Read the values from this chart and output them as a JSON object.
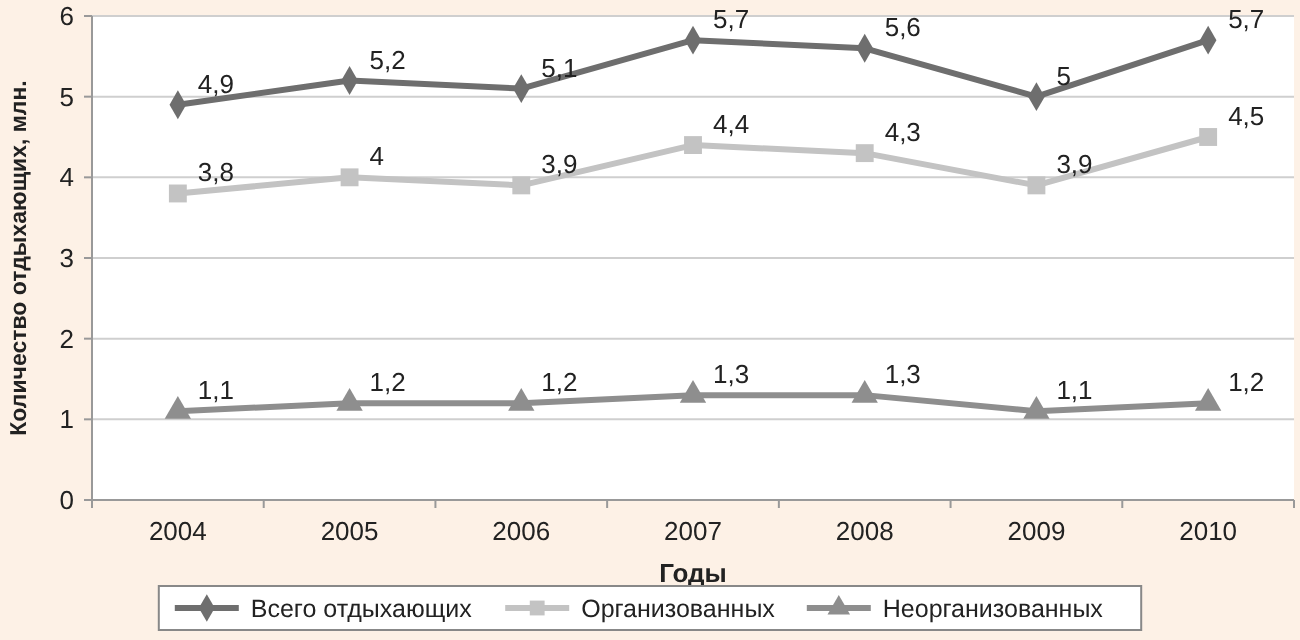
{
  "chart_data": {
    "type": "line",
    "xlabel": "Годы",
    "ylabel": "Количество отдыхающих, млн.",
    "categories": [
      "2004",
      "2005",
      "2006",
      "2007",
      "2008",
      "2009",
      "2010"
    ],
    "ylim": [
      0,
      6
    ],
    "yticks": [
      0,
      1,
      2,
      3,
      4,
      5,
      6
    ],
    "grid": "y",
    "legend": "bottom",
    "series": [
      {
        "name": "Всего отдыхающих",
        "color": "#6e6e6e",
        "marker": "diamond",
        "values": [
          4.9,
          5.2,
          5.1,
          5.7,
          5.6,
          5,
          5.7
        ],
        "value_labels": [
          "4,9",
          "5,2",
          "5,1",
          "5,7",
          "5,6",
          "5",
          "5,7"
        ]
      },
      {
        "name": "Организованных",
        "color": "#c3c3c3",
        "marker": "square",
        "values": [
          3.8,
          4,
          3.9,
          4.4,
          4.3,
          3.9,
          4.5
        ],
        "value_labels": [
          "3,8",
          "4",
          "3,9",
          "4,4",
          "4,3",
          "3,9",
          "4,5"
        ]
      },
      {
        "name": "Неорганизованных",
        "color": "#8e8e8e",
        "marker": "triangle",
        "values": [
          1.1,
          1.2,
          1.2,
          1.3,
          1.3,
          1.1,
          1.2
        ],
        "value_labels": [
          "1,1",
          "1,2",
          "1,2",
          "1,3",
          "1,3",
          "1,1",
          "1,2"
        ]
      }
    ]
  }
}
